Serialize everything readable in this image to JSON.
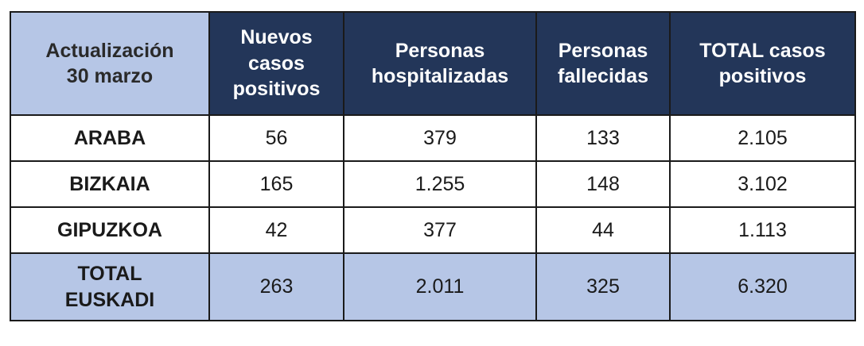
{
  "table": {
    "corner": "Actualización\n30 marzo",
    "headers": [
      "Nuevos\ncasos\npositivos",
      "Personas\nhospitalizadas",
      "Personas\nfallecidas",
      "TOTAL casos\npositivos"
    ],
    "rows": [
      {
        "label": "ARABA",
        "values": [
          "56",
          "379",
          "133",
          "2.105"
        ]
      },
      {
        "label": "BIZKAIA",
        "values": [
          "165",
          "1.255",
          "148",
          "3.102"
        ]
      },
      {
        "label": "GIPUZKOA",
        "values": [
          "42",
          "377",
          "44",
          "1.113"
        ]
      }
    ],
    "total": {
      "label": "TOTAL\nEUSKADI",
      "values": [
        "263",
        "2.011",
        "325",
        "6.320"
      ]
    }
  },
  "colors": {
    "header_dark": "#233659",
    "header_light": "#b6c6e6",
    "border": "#1a1a1a"
  }
}
